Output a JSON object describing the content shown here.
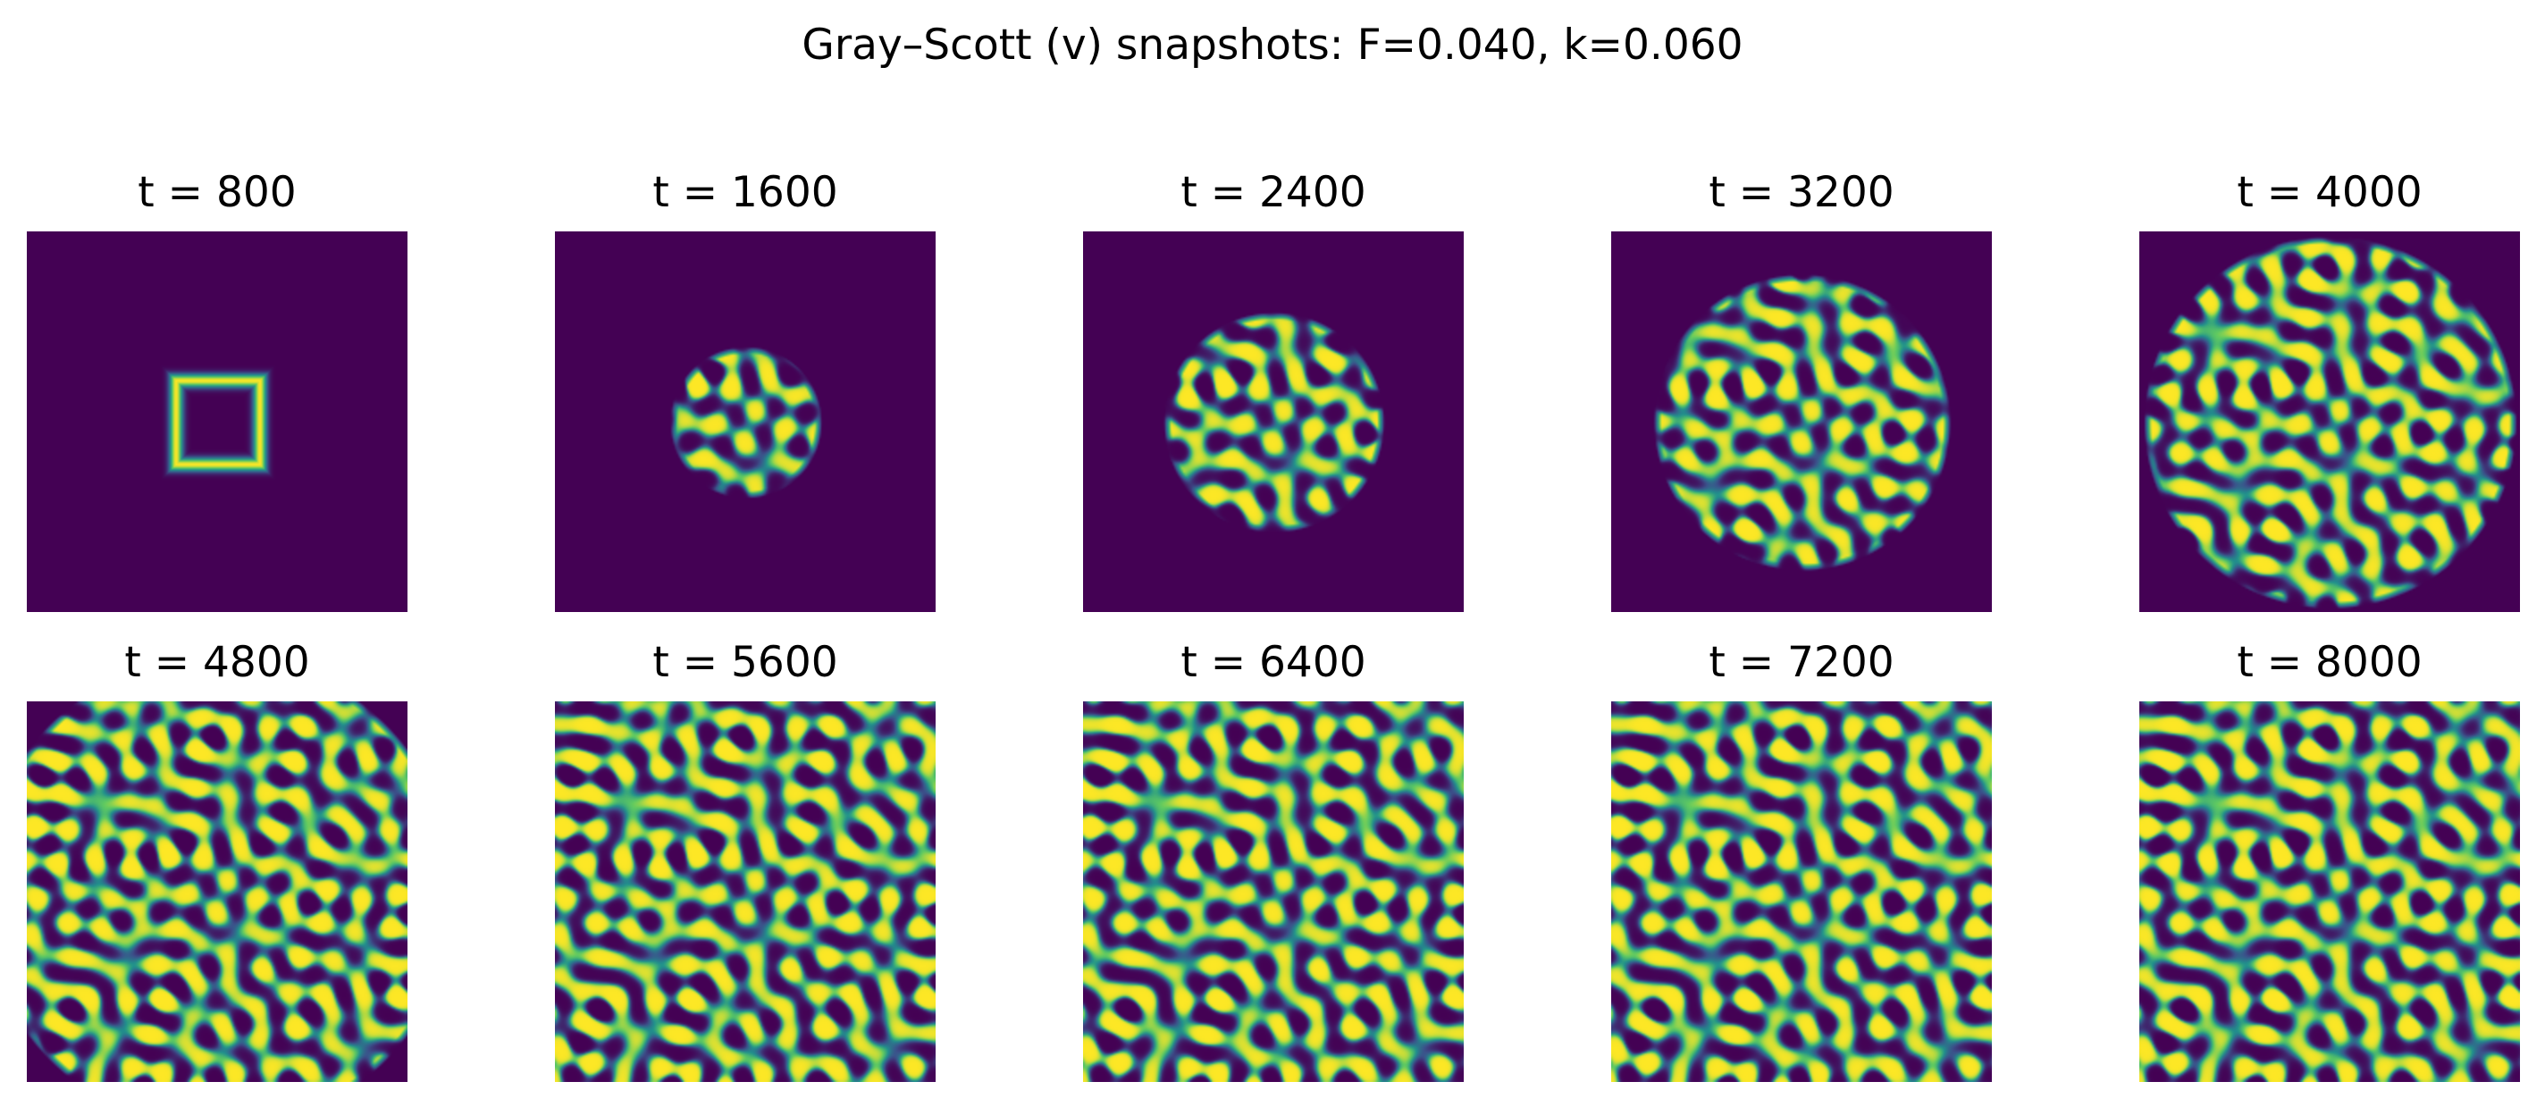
{
  "figure": {
    "title": "Gray–Scott (v) snapshots: F=0.040, k=0.060",
    "colormap": [
      "#440154",
      "#3b528b",
      "#21918c",
      "#5ec962",
      "#fde725"
    ],
    "background_color": "#440154"
  },
  "panels": [
    {
      "title": "t = 800"
    },
    {
      "title": "t = 1600"
    },
    {
      "title": "t = 2400"
    },
    {
      "title": "t = 3200"
    },
    {
      "title": "t = 4000"
    },
    {
      "title": "t = 4800"
    },
    {
      "title": "t = 5600"
    },
    {
      "title": "t = 6400"
    },
    {
      "title": "t = 7200"
    },
    {
      "title": "t = 8000"
    }
  ]
}
